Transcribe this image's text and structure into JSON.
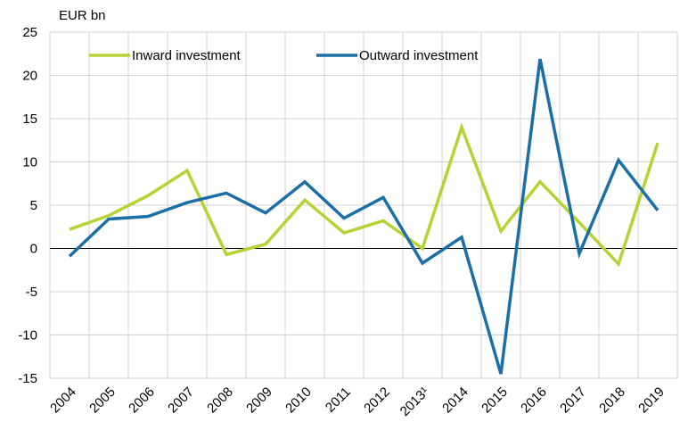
{
  "chart_data": {
    "type": "line",
    "y_label": "EUR bn",
    "categories": [
      "2004",
      "2005",
      "2006",
      "2007",
      "2008",
      "2009",
      "2010",
      "2011",
      "2012",
      "2013¹",
      "2014",
      "2015",
      "2016",
      "2017",
      "2018",
      "2019"
    ],
    "series": [
      {
        "name": "Inward investment",
        "color": "#b5d334",
        "values": [
          2.2,
          3.8,
          6.1,
          9.0,
          -0.7,
          0.5,
          5.6,
          1.8,
          3.2,
          0.0,
          14.0,
          2.0,
          7.7,
          3.0,
          -1.8,
          12.2
        ]
      },
      {
        "name": "Outward investment",
        "color": "#1b6ea6",
        "values": [
          -0.9,
          3.4,
          3.7,
          5.3,
          6.4,
          4.1,
          7.7,
          3.5,
          5.9,
          -1.7,
          1.3,
          -14.5,
          21.9,
          -0.6,
          10.2,
          4.4
        ]
      }
    ],
    "ylim": [
      -15,
      25
    ],
    "yticks": [
      -15,
      -10,
      -5,
      0,
      5,
      10,
      15,
      20,
      25
    ],
    "grid": true
  }
}
